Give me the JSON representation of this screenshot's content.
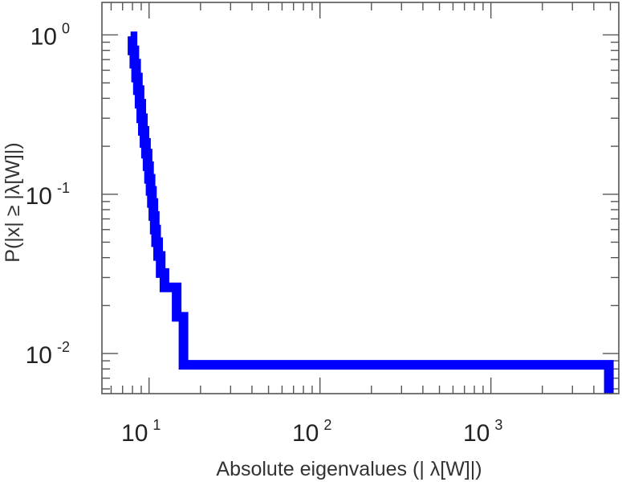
{
  "chart_data": {
    "type": "line",
    "title": "",
    "xlabel": "Absolute eigenvalues (|     λ[W]|)",
    "ylabel": "P(|x|  ≥ |λ[W]|)",
    "xscale": "log",
    "yscale": "log",
    "xlim": [
      5.3,
      5600
    ],
    "ylim": [
      0.0056,
      1.6
    ],
    "grid": false,
    "legend": "none",
    "x_ticks": [
      {
        "base": "10",
        "exp": "1",
        "value": 10
      },
      {
        "base": "10",
        "exp": "2",
        "value": 100
      },
      {
        "base": "10",
        "exp": "3",
        "value": 1000
      }
    ],
    "y_ticks": [
      {
        "base": "10",
        "exp": "0",
        "value": 1
      },
      {
        "base": "10",
        "exp": "-1",
        "value": 0.1
      },
      {
        "base": "10",
        "exp": "-2",
        "value": 0.01
      }
    ],
    "series": [
      {
        "color": "#0000ff",
        "step": true,
        "x": [
          7.8,
          8.0,
          8.2,
          8.4,
          8.6,
          8.8,
          9.0,
          9.2,
          9.4,
          9.6,
          9.8,
          10.0,
          10.2,
          10.4,
          10.6,
          10.8,
          11.0,
          11.3,
          11.7,
          12.3,
          14.5,
          15.9,
          4900
        ],
        "y": [
          0.98,
          0.8,
          0.66,
          0.54,
          0.45,
          0.37,
          0.3,
          0.25,
          0.21,
          0.18,
          0.15,
          0.125,
          0.105,
          0.088,
          0.073,
          0.06,
          0.05,
          0.041,
          0.032,
          0.026,
          0.017,
          0.0085,
          0.0085
        ]
      }
    ]
  }
}
